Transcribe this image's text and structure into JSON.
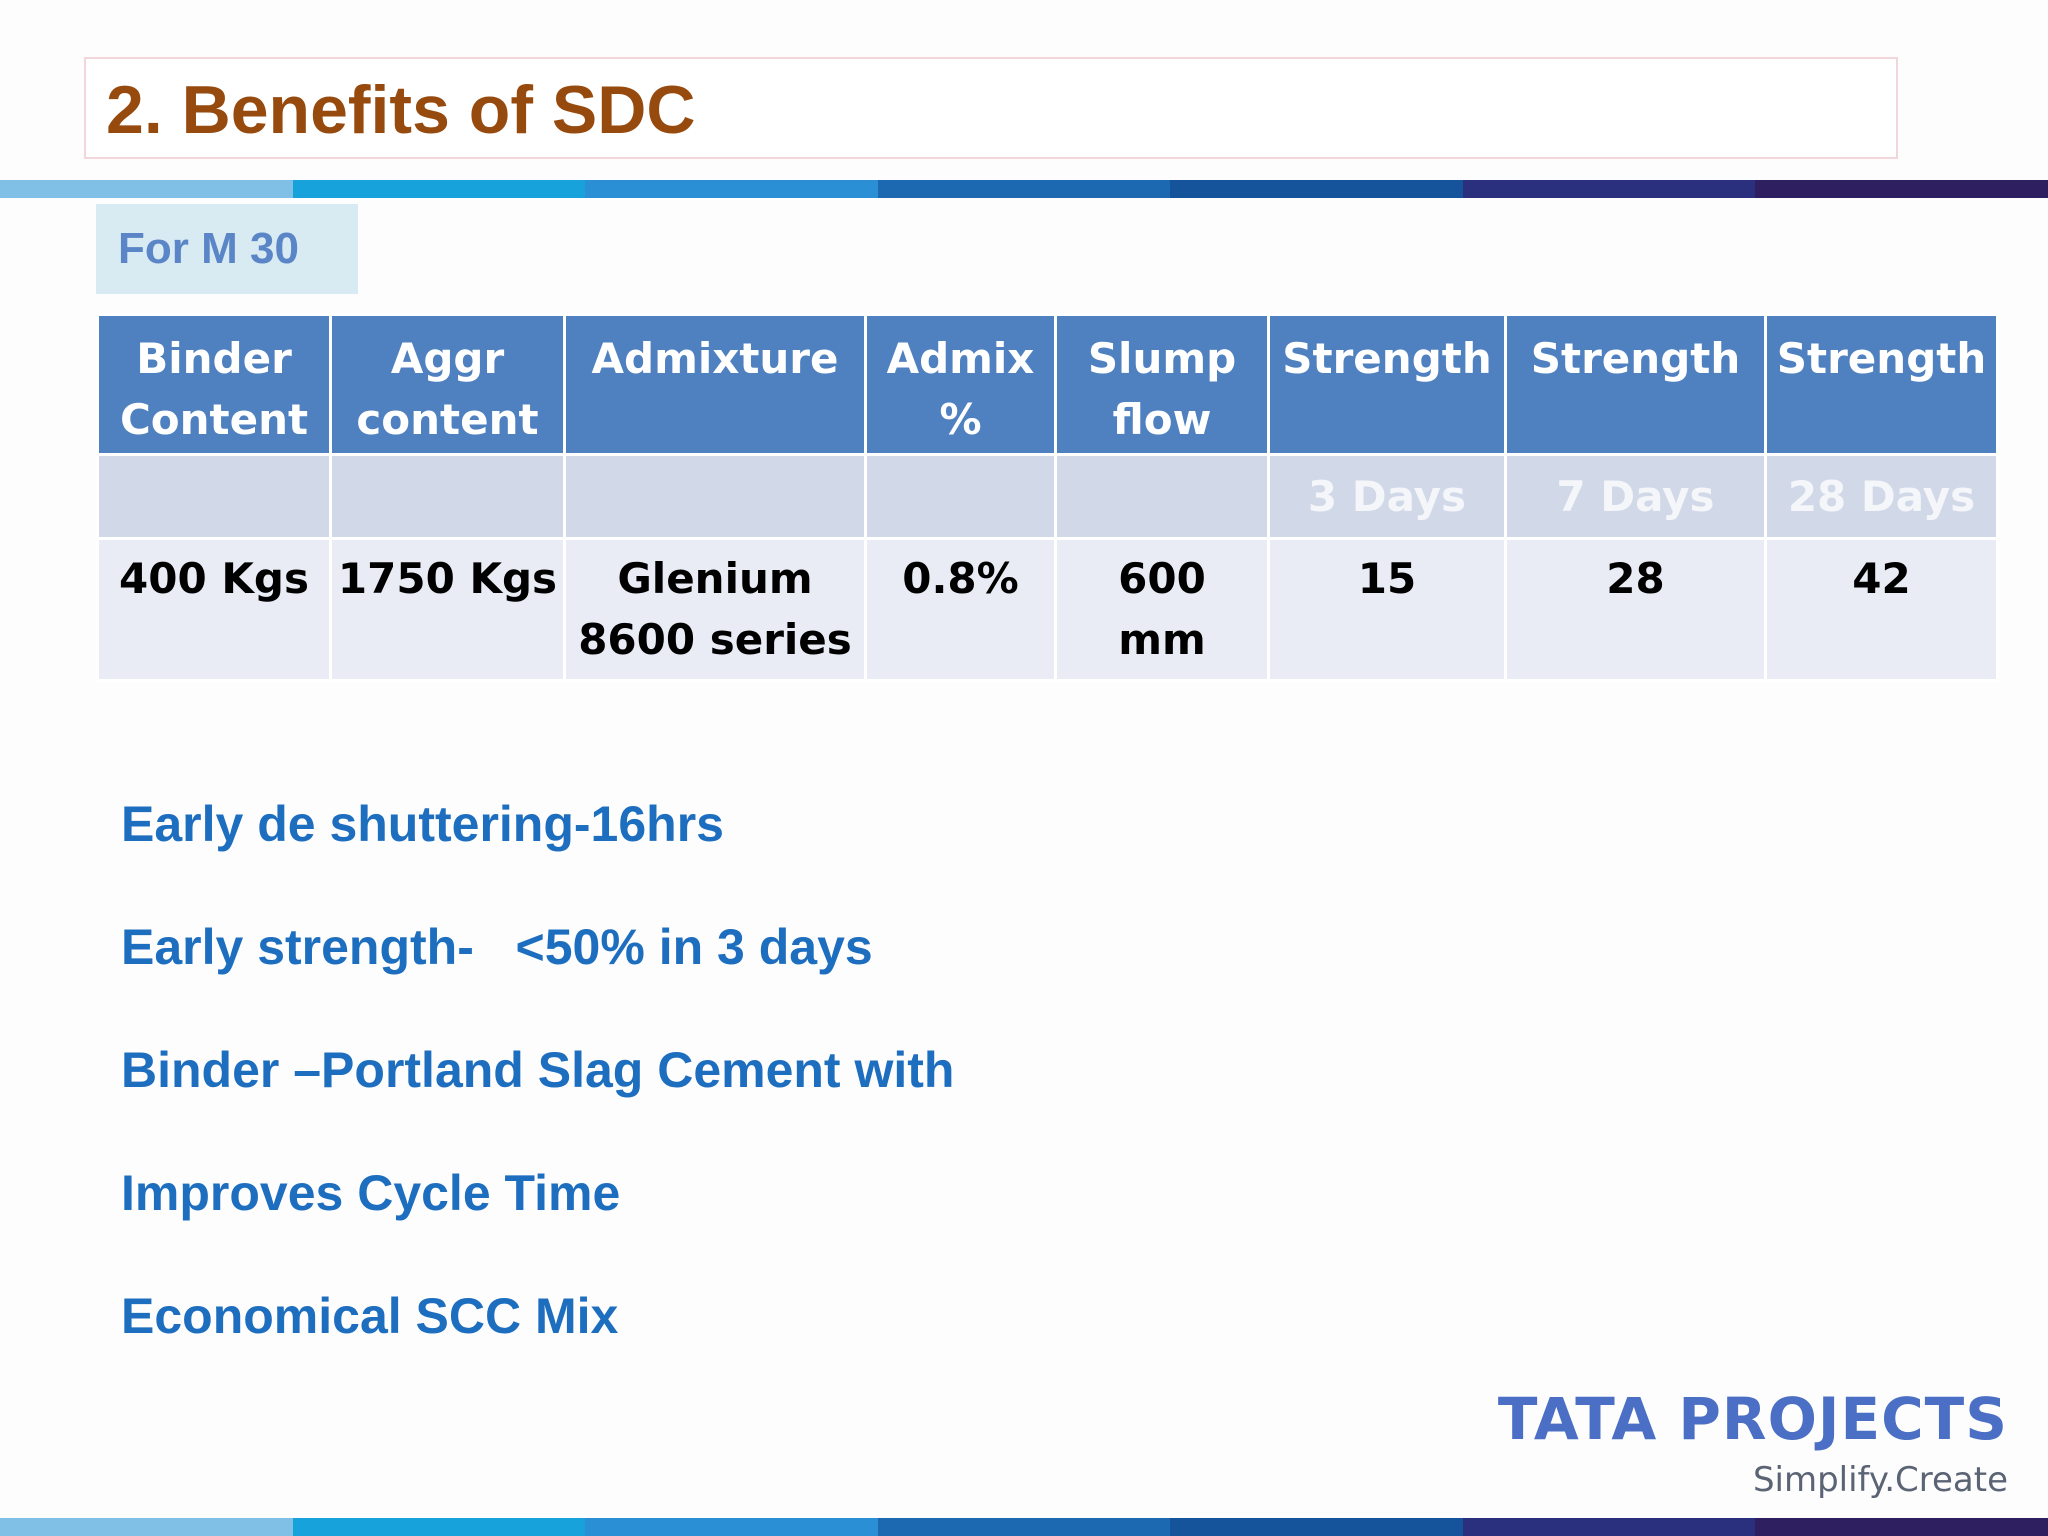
{
  "slide": {
    "title": "2. Benefits of SDC",
    "subtitle": "For M 30"
  },
  "table": {
    "headers": [
      [
        "Binder",
        "Content"
      ],
      [
        "Aggr",
        "content"
      ],
      [
        "Admixture",
        ""
      ],
      [
        "Admix",
        "%"
      ],
      [
        "Slump",
        "flow"
      ],
      [
        "Strength",
        ""
      ],
      [
        "Strength",
        ""
      ],
      [
        "Strength",
        ""
      ]
    ],
    "units": [
      "",
      "",
      "",
      "",
      "",
      "3 Days",
      "7 Days",
      "28 Days"
    ],
    "values": [
      [
        "400 Kgs",
        ""
      ],
      [
        "1750 Kgs",
        ""
      ],
      [
        "Glenium",
        "8600 series"
      ],
      [
        "0.8%",
        ""
      ],
      [
        "600",
        "mm"
      ],
      [
        "15",
        ""
      ],
      [
        "28",
        ""
      ],
      [
        "42",
        ""
      ]
    ]
  },
  "bullets": [
    "Early de shuttering-16hrs",
    "Early strength-   <50% in 3 days",
    "Binder –Portland Slag Cement with",
    "Improves Cycle Time",
    "Economical SCC Mix"
  ],
  "logo": {
    "name": "TATA PROJECTS",
    "tagline": "Simplify.Create"
  },
  "colors": {
    "title": "#974a0e",
    "header_bg": "#4f80bf",
    "bullet": "#1e6ebf",
    "bar": [
      "#80bfe6",
      "#17a2dc",
      "#2a8fd4",
      "#1c69b2",
      "#15539a",
      "#2a2f7e",
      "#2e1f60"
    ]
  }
}
